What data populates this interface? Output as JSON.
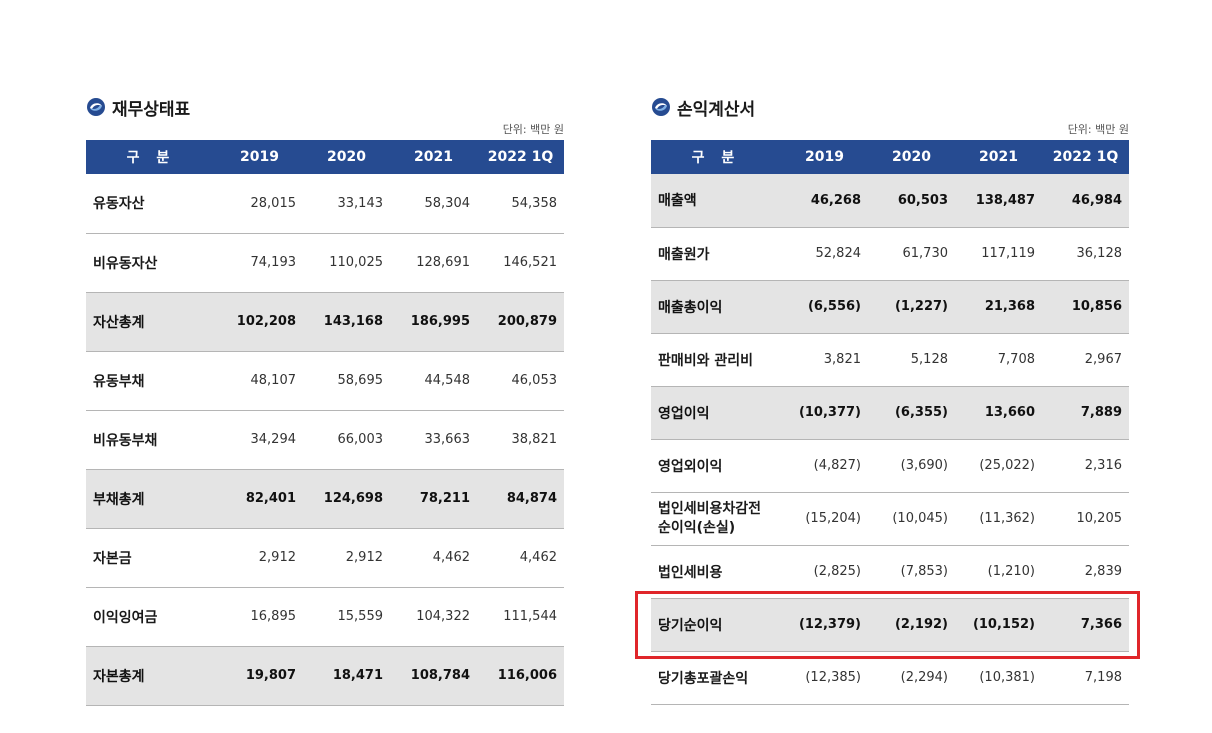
{
  "balance_sheet": {
    "title": "재무상태표",
    "unit": "단위: 백만 원",
    "headers": [
      "구 분",
      "2019",
      "2020",
      "2021",
      "2022 1Q"
    ],
    "rows": [
      {
        "label": "유동자산",
        "values": [
          "28,015",
          "33,143",
          "58,304",
          "54,358"
        ]
      },
      {
        "label": "비유동자산",
        "values": [
          "74,193",
          "110,025",
          "128,691",
          "146,521"
        ]
      },
      {
        "label": "자산총계",
        "values": [
          "102,208",
          "143,168",
          "186,995",
          "200,879"
        ]
      },
      {
        "label": "유동부채",
        "values": [
          "48,107",
          "58,695",
          "44,548",
          "46,053"
        ]
      },
      {
        "label": "비유동부채",
        "values": [
          "34,294",
          "66,003",
          "33,663",
          "38,821"
        ]
      },
      {
        "label": "부채총계",
        "values": [
          "82,401",
          "124,698",
          "78,211",
          "84,874"
        ]
      },
      {
        "label": "자본금",
        "values": [
          "2,912",
          "2,912",
          "4,462",
          "4,462"
        ]
      },
      {
        "label": "이익잉여금",
        "values": [
          "16,895",
          "15,559",
          "104,322",
          "111,544"
        ]
      },
      {
        "label": "자본총계",
        "values": [
          "19,807",
          "18,471",
          "108,784",
          "116,006"
        ]
      }
    ]
  },
  "income_statement": {
    "title": "손익계산서",
    "unit": "단위: 백만 원",
    "headers": [
      "구 분",
      "2019",
      "2020",
      "2021",
      "2022 1Q"
    ],
    "rows": [
      {
        "label": "매출액",
        "values": [
          "46,268",
          "60,503",
          "138,487",
          "46,984"
        ]
      },
      {
        "label": "매출원가",
        "values": [
          "52,824",
          "61,730",
          "117,119",
          "36,128"
        ]
      },
      {
        "label": "매출총이익",
        "values": [
          "(6,556)",
          "(1,227)",
          "21,368",
          "10,856"
        ]
      },
      {
        "label": "판매비와 관리비",
        "values": [
          "3,821",
          "5,128",
          "7,708",
          "2,967"
        ]
      },
      {
        "label": "영업이익",
        "values": [
          "(10,377)",
          "(6,355)",
          "13,660",
          "7,889"
        ]
      },
      {
        "label": "영업외이익",
        "values": [
          "(4,827)",
          "(3,690)",
          "(25,022)",
          "2,316"
        ]
      },
      {
        "label_line1": "법인세비용차감전",
        "label_line2": "순이익(손실)",
        "values": [
          "(15,204)",
          "(10,045)",
          "(11,362)",
          "10,205"
        ]
      },
      {
        "label": "법인세비용",
        "values": [
          "(2,825)",
          "(7,853)",
          "(1,210)",
          "2,839"
        ]
      },
      {
        "label": "당기순이익",
        "values": [
          "(12,379)",
          "(2,192)",
          "(10,152)",
          "7,366"
        ]
      },
      {
        "label": "당기총포괄손익",
        "values": [
          "(12,385)",
          "(2,294)",
          "(10,381)",
          "7,198"
        ]
      }
    ]
  },
  "colors": {
    "header_bg": "#264b91",
    "shaded_row": "#e4e4e4",
    "highlight_border": "#e0262a"
  }
}
